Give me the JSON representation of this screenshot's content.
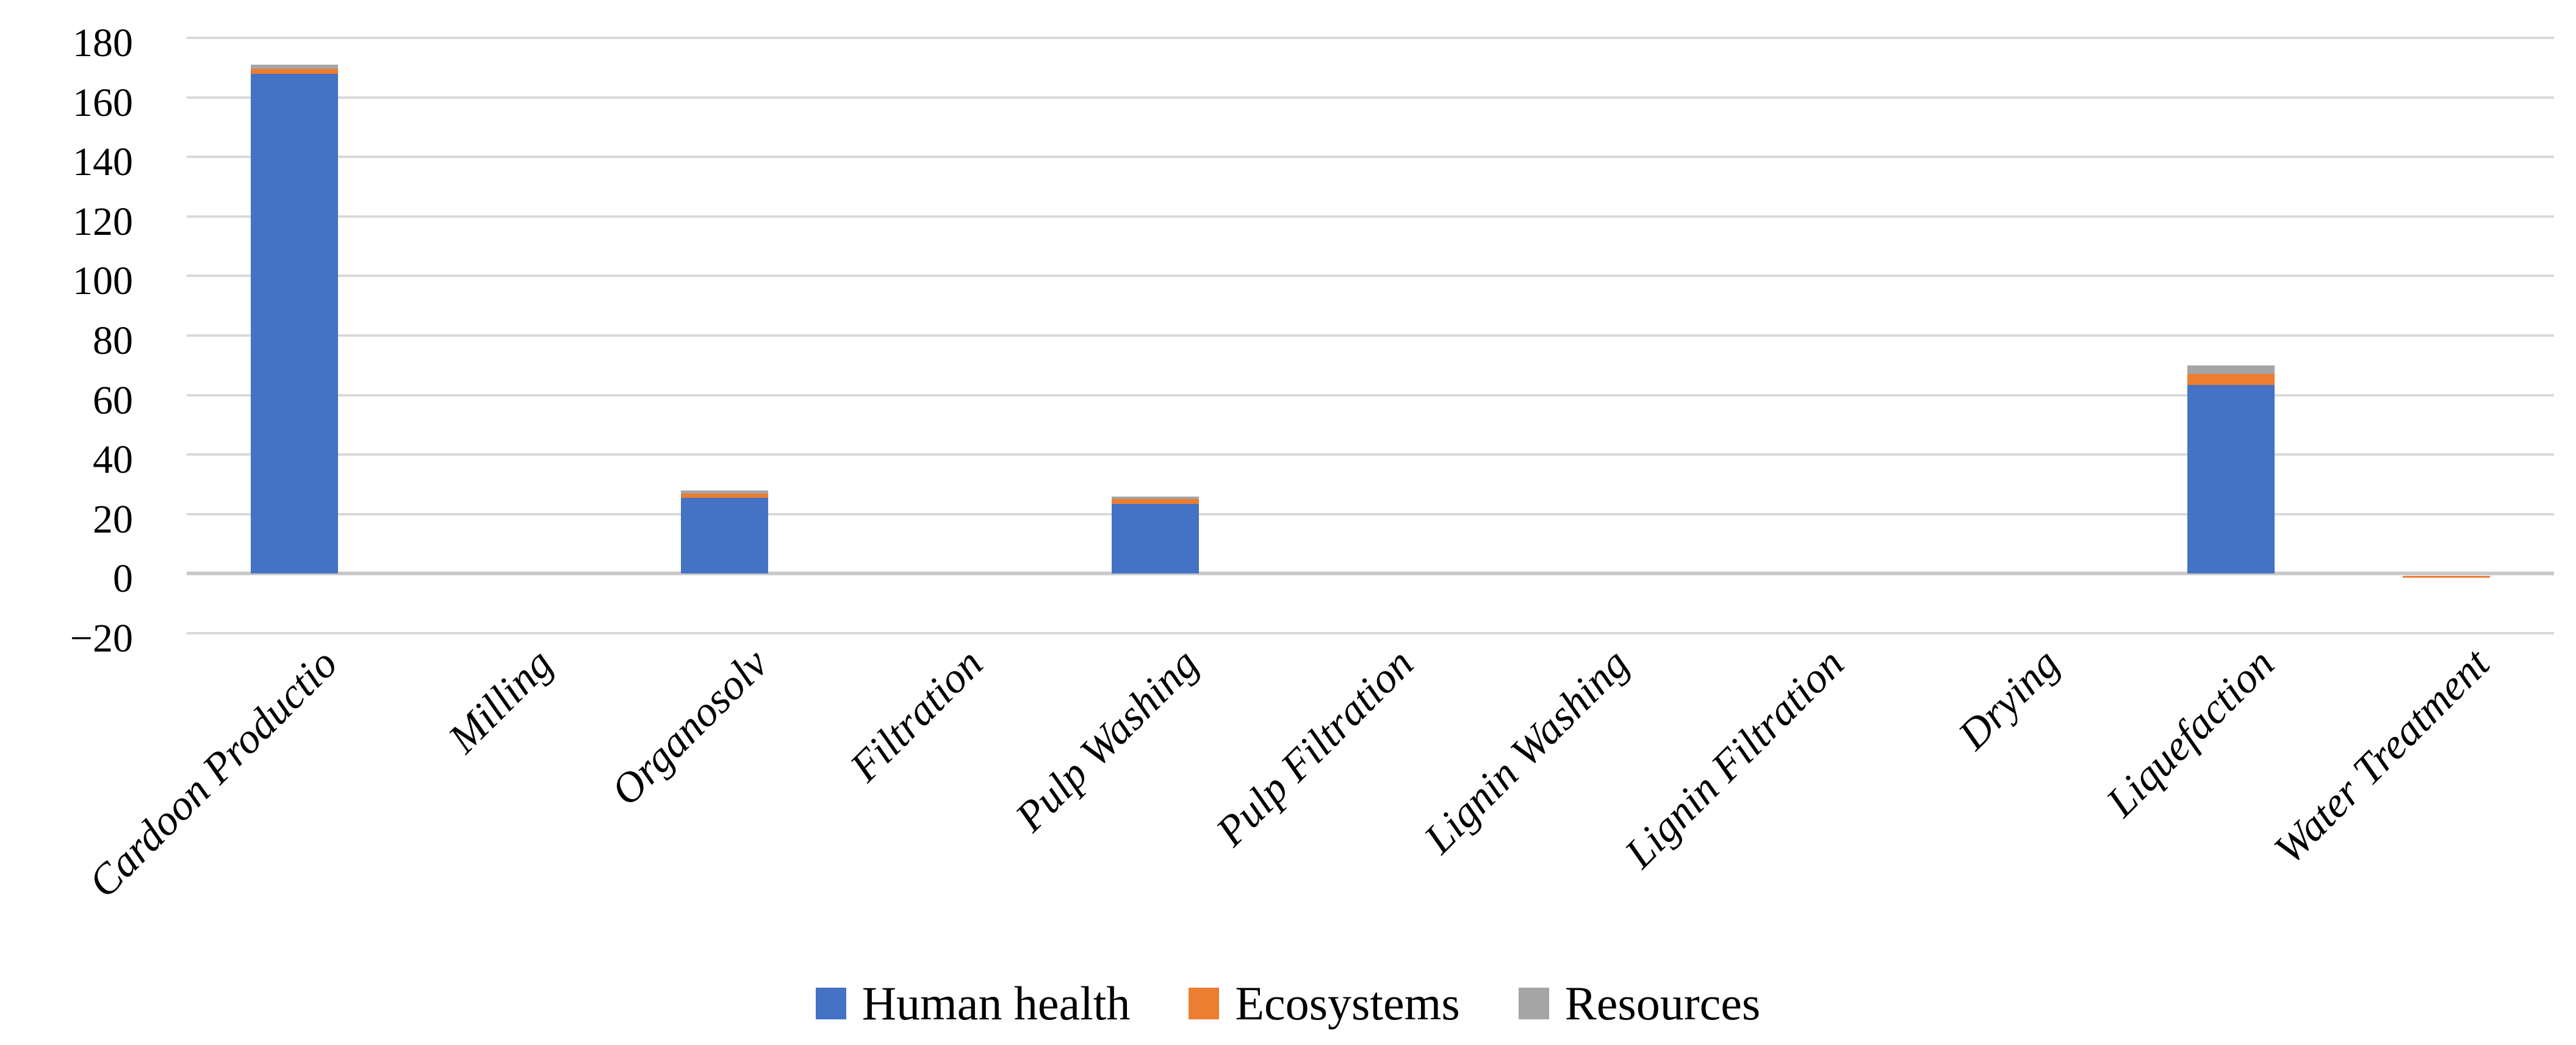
{
  "figure": {
    "background": "#ffffff",
    "title": ""
  },
  "chart_data": {
    "type": "bar",
    "stacked": true,
    "orientation": "vertical",
    "title": "",
    "xlabel": "",
    "ylabel": "",
    "grid": "horizontal",
    "gridline_color": "#D9D9D9",
    "zero_axis_color": "#C9C9C9",
    "ylim": [
      -20,
      180
    ],
    "ytick_step": 20,
    "ytick_labels": [
      "180",
      "160",
      "140",
      "120",
      "100",
      "80",
      "60",
      "40",
      "20",
      "0",
      "−20"
    ],
    "legend_position": "bottom",
    "categories": [
      "Cardoon Productio",
      "Milling",
      "Organosolv",
      "Filtration",
      "Pulp Washing",
      "Pulp Filtration",
      "Lignin Washing",
      "Lignin Filtration",
      "Drying",
      "Liquefaction",
      "Water Treatment"
    ],
    "series": [
      {
        "name": "Human health",
        "color": "#4472C4",
        "values": [
          168,
          0,
          25.5,
          0,
          23.5,
          0,
          0,
          0,
          0,
          63.5,
          0
        ]
      },
      {
        "name": "Ecosystems",
        "color": "#ED7D31",
        "values": [
          1.5,
          0,
          1.5,
          0,
          1.5,
          0,
          0,
          0,
          0,
          3.5,
          -0.5
        ]
      },
      {
        "name": "Resources",
        "color": "#A5A5A5",
        "values": [
          1.5,
          0,
          1,
          0,
          1,
          0,
          0,
          0,
          0,
          3,
          0
        ]
      }
    ],
    "category_totals": [
      171,
      0,
      28,
      0,
      26,
      0,
      0,
      0,
      0,
      70,
      -0.5
    ]
  }
}
